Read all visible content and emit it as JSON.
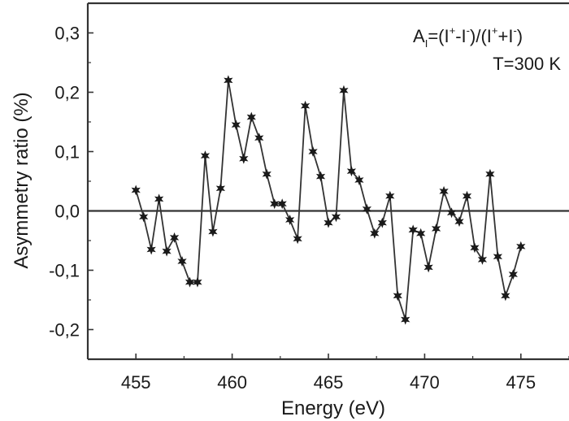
{
  "chart_data": {
    "type": "line",
    "xlabel": "Energy (eV)",
    "ylabel": "Asymmetry ratio (%)",
    "xlim": [
      452.5,
      477.5
    ],
    "ylim": [
      -0.25,
      0.35
    ],
    "x_ticks": [
      455,
      460,
      465,
      470,
      475
    ],
    "x_tick_labels": [
      "455",
      "460",
      "465",
      "470",
      "475"
    ],
    "y_ticks": [
      -0.2,
      -0.1,
      0.0,
      0.1,
      0.2,
      0.3
    ],
    "y_tick_labels": [
      "-0,2",
      "-0,1",
      "0,0",
      "0,1",
      "0,2",
      "0,3"
    ],
    "zero_line": true,
    "grid": false,
    "annotations": {
      "formula": {
        "A": "A",
        "sub_I": "I",
        "eq": "=(I",
        "sup1": "+",
        "mid1": "-I",
        "sup2": "-",
        "mid2": ")/(I",
        "sup3": "+",
        "mid3": "+I",
        "sup4": "-",
        "end": ")"
      },
      "temperature": "T=300 K"
    },
    "series": [
      {
        "color": "#333333",
        "marker": "star",
        "x": [
          455.0,
          455.4,
          455.8,
          456.2,
          456.6,
          457.0,
          457.4,
          457.8,
          458.2,
          458.6,
          459.0,
          459.4,
          459.8,
          460.2,
          460.6,
          461.0,
          461.4,
          461.8,
          462.2,
          462.6,
          463.0,
          463.4,
          463.8,
          464.2,
          464.6,
          465.0,
          465.4,
          465.8,
          466.2,
          466.6,
          467.0,
          467.4,
          467.8,
          468.2,
          468.6,
          469.0,
          469.4,
          469.8,
          470.2,
          470.6,
          471.0,
          471.4,
          471.8,
          472.2,
          472.6,
          473.0,
          473.4,
          473.8,
          474.2,
          474.6,
          475.0
        ],
        "y": [
          0.035,
          -0.01,
          -0.065,
          0.02,
          -0.068,
          -0.045,
          -0.085,
          -0.12,
          -0.12,
          0.093,
          -0.035,
          0.038,
          0.22,
          0.145,
          0.088,
          0.158,
          0.123,
          0.062,
          0.012,
          0.012,
          -0.015,
          -0.047,
          0.177,
          0.1,
          0.058,
          -0.02,
          -0.01,
          0.203,
          0.067,
          0.052,
          0.003,
          -0.038,
          -0.02,
          0.025,
          -0.143,
          -0.183,
          -0.032,
          -0.038,
          -0.095,
          -0.03,
          0.033,
          -0.003,
          -0.018,
          0.025,
          -0.062,
          -0.082,
          0.062,
          -0.077,
          -0.143,
          -0.107,
          -0.06
        ]
      }
    ]
  }
}
